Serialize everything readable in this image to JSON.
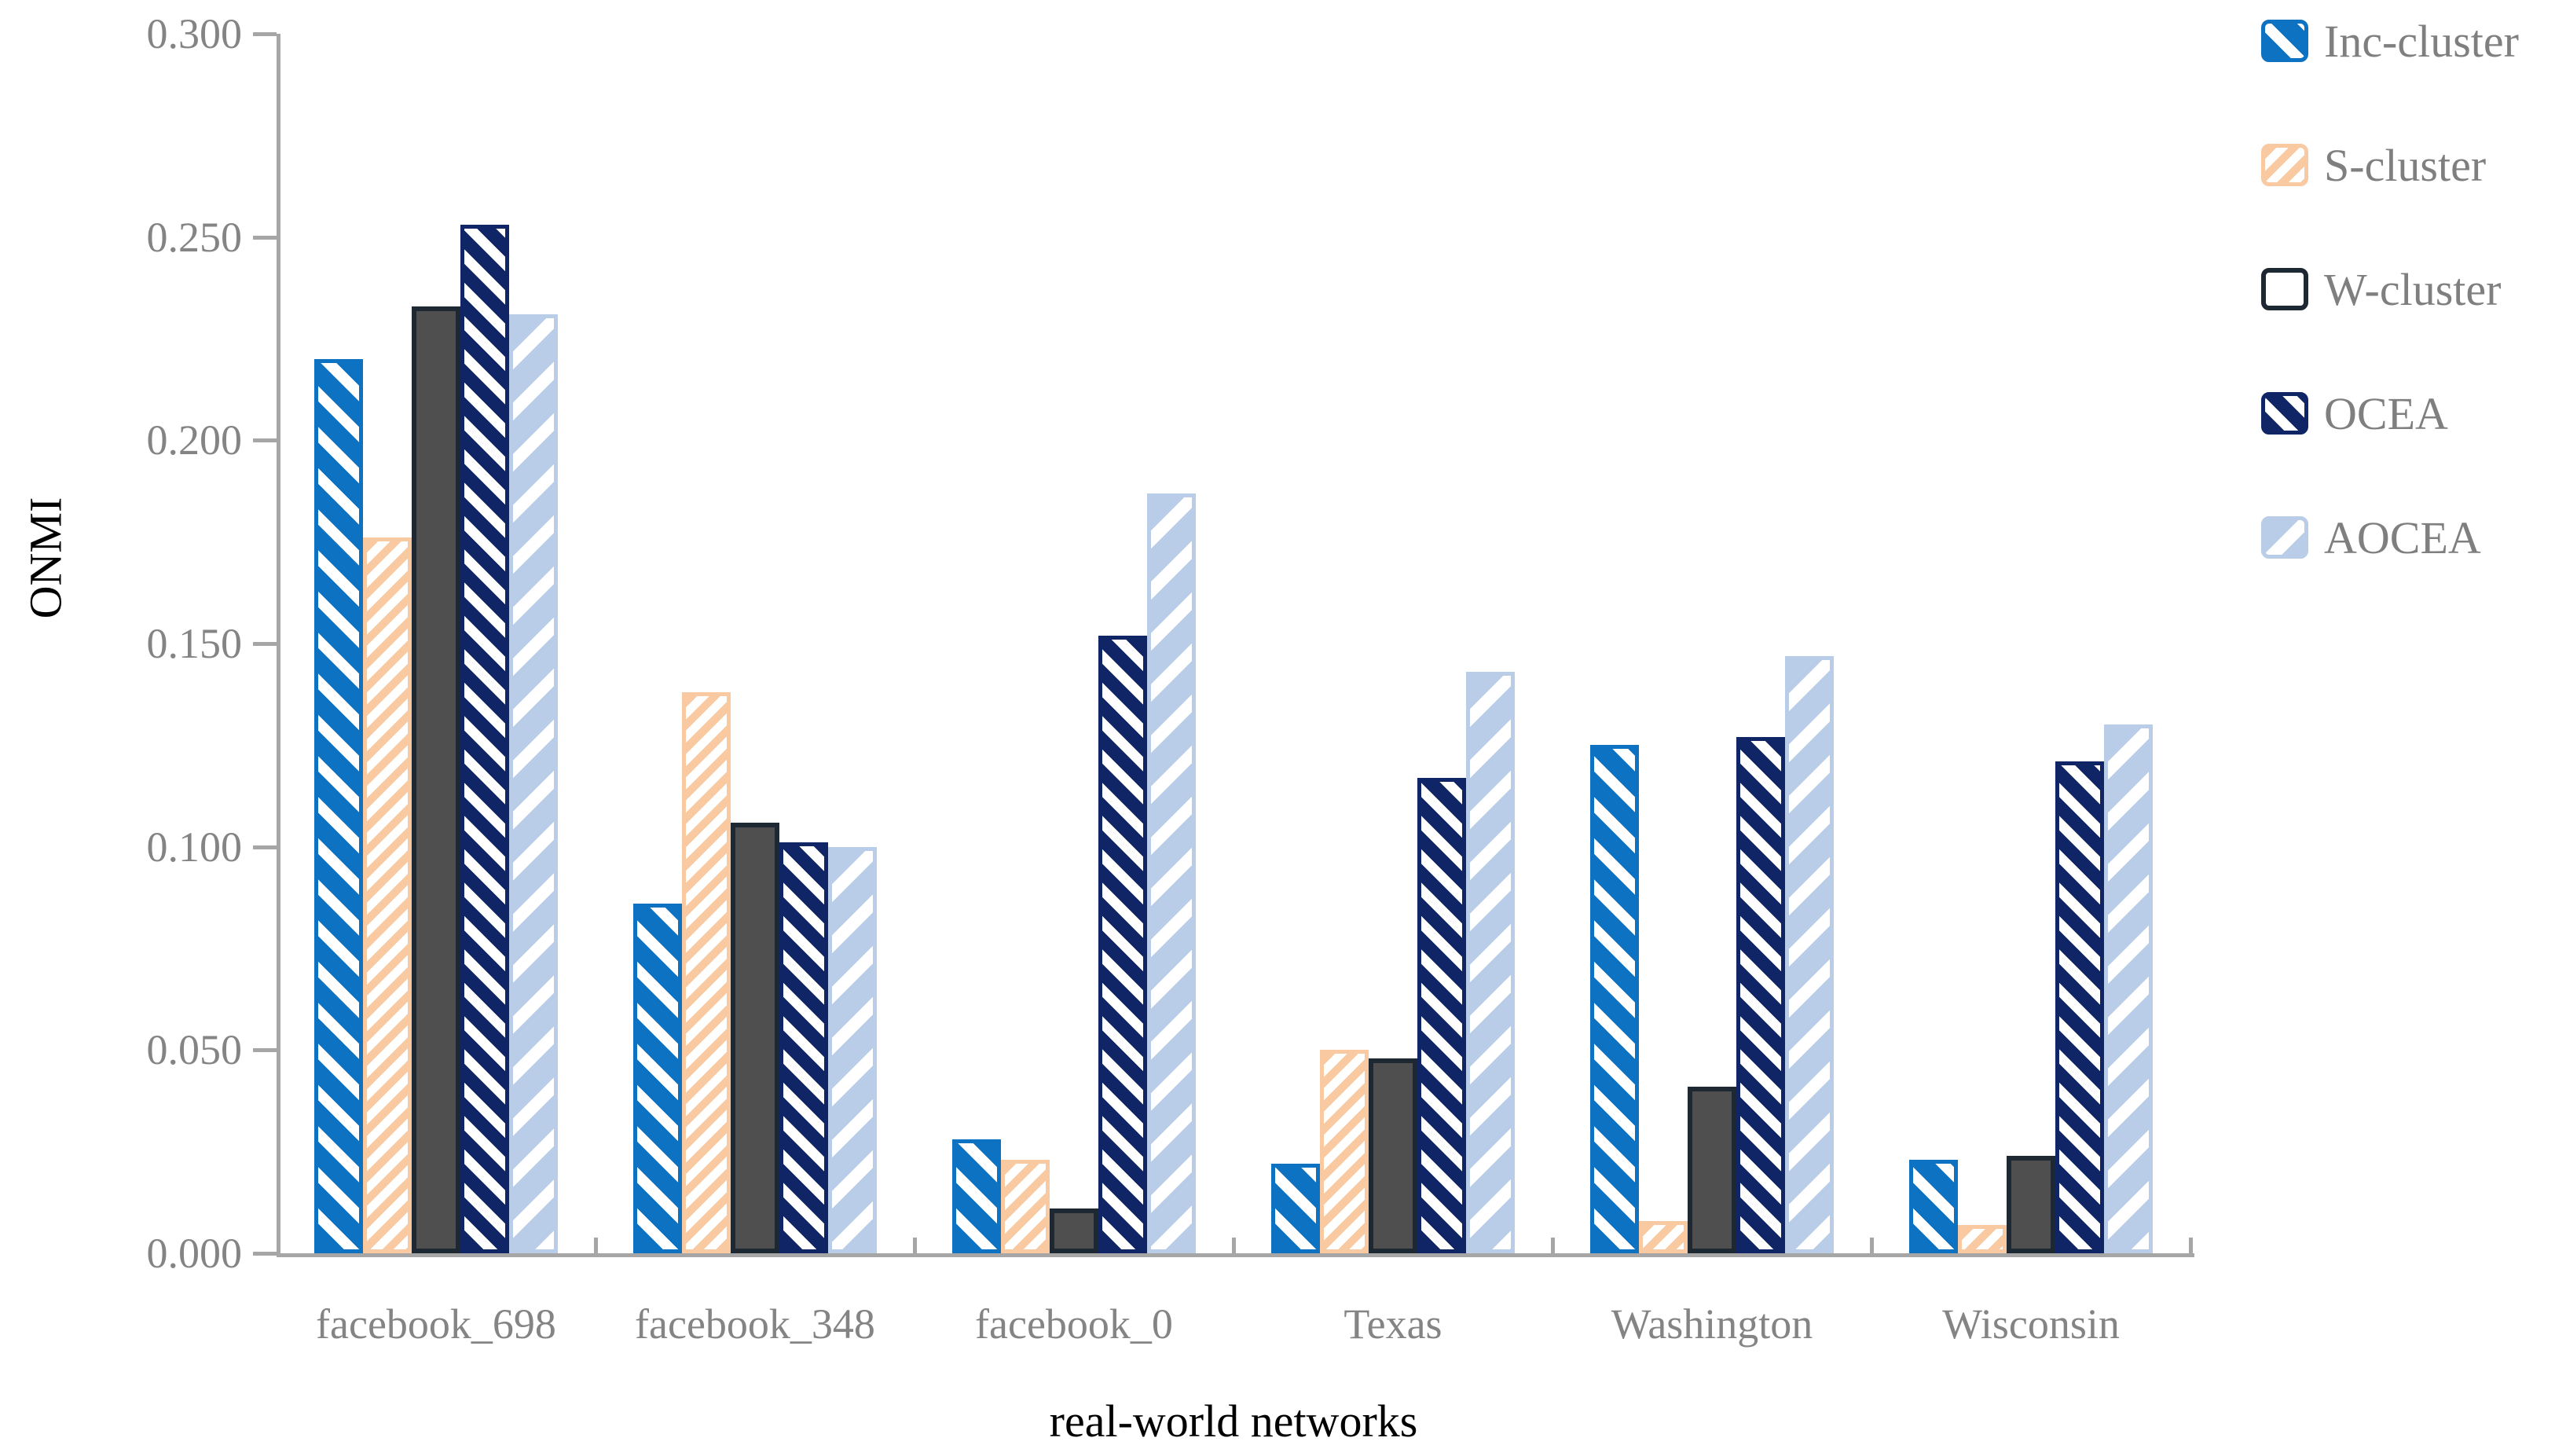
{
  "chart_data": {
    "type": "bar",
    "title": "",
    "xlabel": "real-world networks",
    "ylabel": "ONMI",
    "categories": [
      "facebook_698",
      "facebook_348",
      "facebook_0",
      "Texas",
      "Washington",
      "Wisconsin"
    ],
    "series": [
      {
        "name": "Inc-cluster",
        "key": "inc",
        "color": "#0D72C2",
        "pattern": "white diagonal-down stripes on blue",
        "values": [
          0.22,
          0.086,
          0.028,
          0.022,
          0.125,
          0.023
        ]
      },
      {
        "name": "S-cluster",
        "key": "s",
        "color": "#F9C9A2",
        "pattern": "peach diagonal-up stripes on white",
        "values": [
          0.176,
          0.138,
          0.023,
          0.05,
          0.008,
          0.007
        ]
      },
      {
        "name": "W-cluster",
        "key": "w",
        "color": "#4F4F4F",
        "pattern": "solid dark gray with darker border",
        "values": [
          0.233,
          0.106,
          0.011,
          0.048,
          0.041,
          0.024
        ]
      },
      {
        "name": "OCEA",
        "key": "ocea",
        "color": "#0F2566",
        "pattern": "white diagonal-down stripes on navy",
        "values": [
          0.253,
          0.101,
          0.152,
          0.117,
          0.127,
          0.121
        ]
      },
      {
        "name": "AOCEA",
        "key": "aocea",
        "color": "#B9CCE8",
        "pattern": "white diagonal-up stripes on light blue",
        "values": [
          0.231,
          0.1,
          0.187,
          0.143,
          0.147,
          0.13
        ]
      }
    ],
    "y_ticks": [
      "0.300",
      "0.250",
      "0.200",
      "0.150",
      "0.100",
      "0.050",
      "0.000"
    ],
    "ylim": [
      0,
      0.3
    ],
    "grid": false,
    "legend_position": "right",
    "axis_color": "#A6A6A6",
    "tick_label_color": "#848484",
    "legend_text_color": "#7F7F7F",
    "axis_title_color": "#000000"
  }
}
